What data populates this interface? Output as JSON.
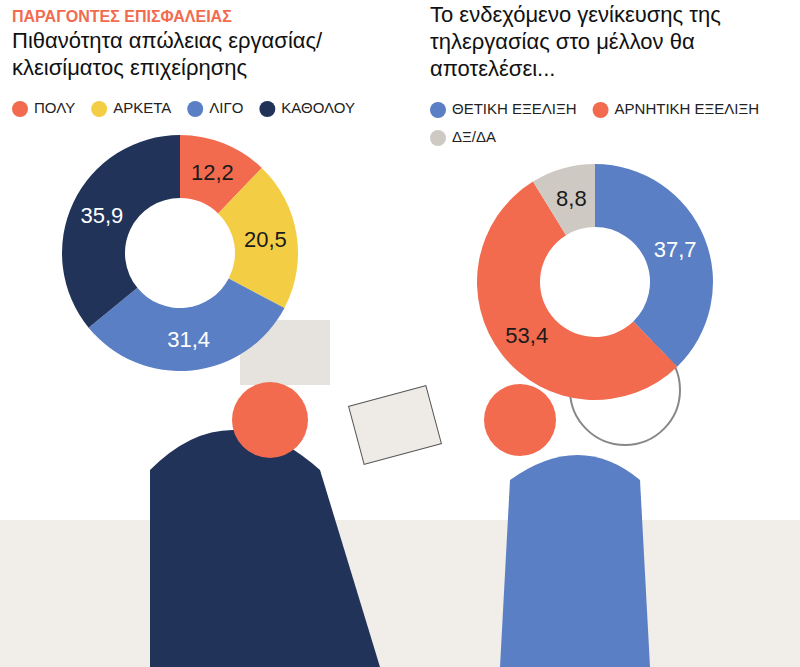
{
  "chart_data": [
    {
      "type": "donut",
      "subtitle": "ΠΑΡΑΓΟΝΤΕΣ ΕΠΙΣΦΑΛΕΙΑΣ",
      "title": "Πιθανότητα απώλειας εργασίας/ κλεισίματος επιχείρησης",
      "categories": [
        "ΠΟΛΥ",
        "ΑΡΚΕΤΑ",
        "ΛΙΓΟ",
        "ΚΑΘΟΛΟΥ"
      ],
      "values": [
        12.2,
        20.5,
        31.4,
        35.9
      ],
      "value_labels": [
        "12,2",
        "20,5",
        "31,4",
        "35,9"
      ],
      "colors": [
        "#f26b4f",
        "#f3ce45",
        "#5b7fc4",
        "#22335a"
      ],
      "data_labels": true,
      "legend": "top"
    },
    {
      "type": "donut",
      "title": "Το ενδεχόμενο γενίκευσης της τηλεργασίας στο μέλλον θα αποτελέσει...",
      "categories": [
        "ΘΕΤΙΚΗ ΕΞΕΛΙΞΗ",
        "ΑΡΝΗΤΙΚΗ ΕΞΕΛΙΞΗ",
        "ΔΞ/ΔΑ"
      ],
      "values": [
        37.7,
        53.4,
        8.8
      ],
      "value_labels": [
        "37,7",
        "53,4",
        "8,8"
      ],
      "colors": [
        "#5b7fc4",
        "#f26b4f",
        "#cfc9c3"
      ],
      "data_labels": true,
      "legend": "top"
    }
  ]
}
